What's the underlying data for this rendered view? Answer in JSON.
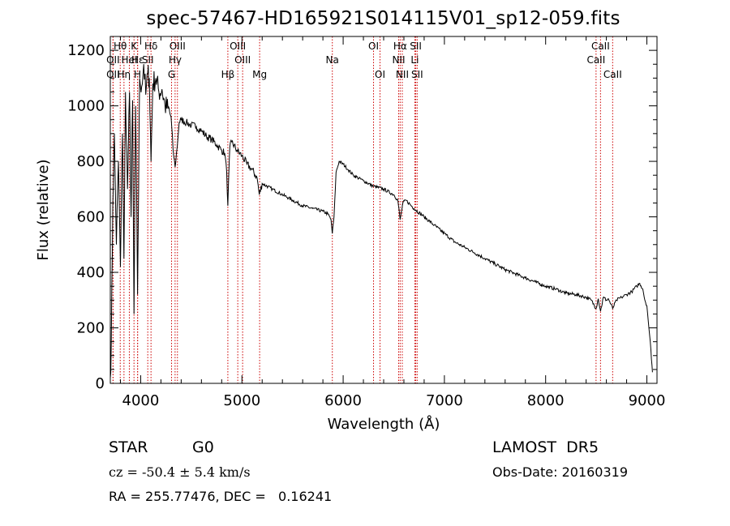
{
  "chart_data": {
    "type": "line",
    "title": "spec-57467-HD165921S014115V01_sp12-059.fits",
    "xlabel": "Wavelength (Å)",
    "ylabel": "Flux (relative)",
    "xlim": [
      3700,
      9100
    ],
    "ylim": [
      0,
      1250
    ],
    "x_ticks": [
      4000,
      5000,
      6000,
      7000,
      8000,
      9000
    ],
    "y_ticks": [
      0,
      200,
      400,
      600,
      800,
      1000,
      1200
    ],
    "grid": false,
    "legend": "none",
    "series": [
      {
        "x": [
          3700,
          3710,
          3725,
          3740,
          3760,
          3780,
          3800,
          3820,
          3835,
          3850,
          3870,
          3890,
          3905,
          3920,
          3934,
          3950,
          3969,
          3990,
          4010,
          4030,
          4050,
          4070,
          4085,
          4102,
          4120,
          4150,
          4180,
          4210,
          4240,
          4270,
          4300,
          4320,
          4340,
          4360,
          4380,
          4400,
          4450,
          4500,
          4550,
          4600,
          4650,
          4700,
          4750,
          4800,
          4830,
          4850,
          4861,
          4880,
          4900,
          4950,
          5000,
          5050,
          5100,
          5150,
          5172,
          5200,
          5300,
          5400,
          5500,
          5600,
          5700,
          5800,
          5850,
          5880,
          5893,
          5910,
          5930,
          5960,
          6000,
          6050,
          6100,
          6200,
          6300,
          6400,
          6500,
          6540,
          6563,
          6590,
          6620,
          6700,
          6800,
          6900,
          7000,
          7100,
          7200,
          7300,
          7400,
          7500,
          7600,
          7700,
          7800,
          7900,
          8000,
          8100,
          8200,
          8300,
          8400,
          8450,
          8498,
          8520,
          8542,
          8570,
          8600,
          8620,
          8662,
          8700,
          8750,
          8800,
          8850,
          8900,
          8930,
          8960,
          8980,
          9000,
          9020,
          9040,
          9055
        ],
        "y": [
          20,
          150,
          650,
          900,
          500,
          800,
          420,
          900,
          450,
          1050,
          700,
          1050,
          600,
          1020,
          250,
          1000,
          320,
          1100,
          1070,
          1150,
          1040,
          1120,
          1100,
          800,
          1080,
          1100,
          1050,
          1060,
          1000,
          990,
          960,
          840,
          780,
          850,
          940,
          950,
          940,
          930,
          925,
          910,
          890,
          880,
          860,
          840,
          830,
          760,
          640,
          850,
          870,
          840,
          820,
          790,
          770,
          740,
          680,
          720,
          700,
          680,
          660,
          640,
          630,
          620,
          610,
          590,
          540,
          600,
          760,
          800,
          790,
          770,
          750,
          730,
          710,
          700,
          680,
          660,
          590,
          650,
          660,
          630,
          600,
          570,
          540,
          510,
          490,
          470,
          450,
          430,
          410,
          395,
          380,
          365,
          350,
          340,
          325,
          320,
          310,
          300,
          270,
          305,
          260,
          310,
          300,
          305,
          270,
          300,
          310,
          320,
          330,
          350,
          360,
          340,
          300,
          280,
          200,
          120,
          40
        ]
      }
    ],
    "line_markers": [
      {
        "label": "OII",
        "wavelength": 3727,
        "row": 3
      },
      {
        "label": "Hη",
        "wavelength": 3835,
        "row": 3
      },
      {
        "label": "OII",
        "wavelength": 3727,
        "row": 2
      },
      {
        "label": "HeI",
        "wavelength": 3888,
        "row": 2
      },
      {
        "label": "SII",
        "wavelength": 4070,
        "row": 2
      },
      {
        "label": "Hε",
        "wavelength": 3970,
        "row": 2
      },
      {
        "label": "Hθ",
        "wavelength": 3798,
        "row": 1
      },
      {
        "label": "K",
        "wavelength": 3934,
        "row": 1
      },
      {
        "label": "H",
        "wavelength": 3969,
        "row": 3
      },
      {
        "label": "Hδ",
        "wavelength": 4102,
        "row": 1
      },
      {
        "label": "OIII",
        "wavelength": 4363,
        "row": 1
      },
      {
        "label": "Hγ",
        "wavelength": 4340,
        "row": 2
      },
      {
        "label": "G",
        "wavelength": 4305,
        "row": 3
      },
      {
        "label": "OIII",
        "wavelength": 4959,
        "row": 1
      },
      {
        "label": "OIII",
        "wavelength": 5007,
        "row": 2
      },
      {
        "label": "Hβ",
        "wavelength": 4861,
        "row": 3
      },
      {
        "label": "Mg",
        "wavelength": 5175,
        "row": 3
      },
      {
        "label": "Na",
        "wavelength": 5893,
        "row": 2
      },
      {
        "label": "OI",
        "wavelength": 6300,
        "row": 1
      },
      {
        "label": "OI",
        "wavelength": 6364,
        "row": 3
      },
      {
        "label": "Hα",
        "wavelength": 6563,
        "row": 1
      },
      {
        "label": "SII",
        "wavelength": 6717,
        "row": 1
      },
      {
        "label": "NII",
        "wavelength": 6548,
        "row": 2
      },
      {
        "label": "Li",
        "wavelength": 6708,
        "row": 2
      },
      {
        "label": "NII",
        "wavelength": 6584,
        "row": 3
      },
      {
        "label": "SII",
        "wavelength": 6731,
        "row": 3
      },
      {
        "label": "CaII",
        "wavelength": 8542,
        "row": 1
      },
      {
        "label": "CaII",
        "wavelength": 8498,
        "row": 2
      },
      {
        "label": "CaII",
        "wavelength": 8662,
        "row": 3
      }
    ]
  },
  "info": {
    "object_class": "STAR",
    "subclass": "G0",
    "survey": "LAMOST  DR5",
    "redshift": "cz = -50.4 ± 5.4 km/s",
    "obs_date": "Obs-Date: 20160319",
    "coords": "RA = 255.77476, DEC =   0.16241"
  },
  "colors": {
    "spectrum": "#000000",
    "marker_line": "#cc0000",
    "axes": "#000000",
    "background": "#ffffff"
  }
}
